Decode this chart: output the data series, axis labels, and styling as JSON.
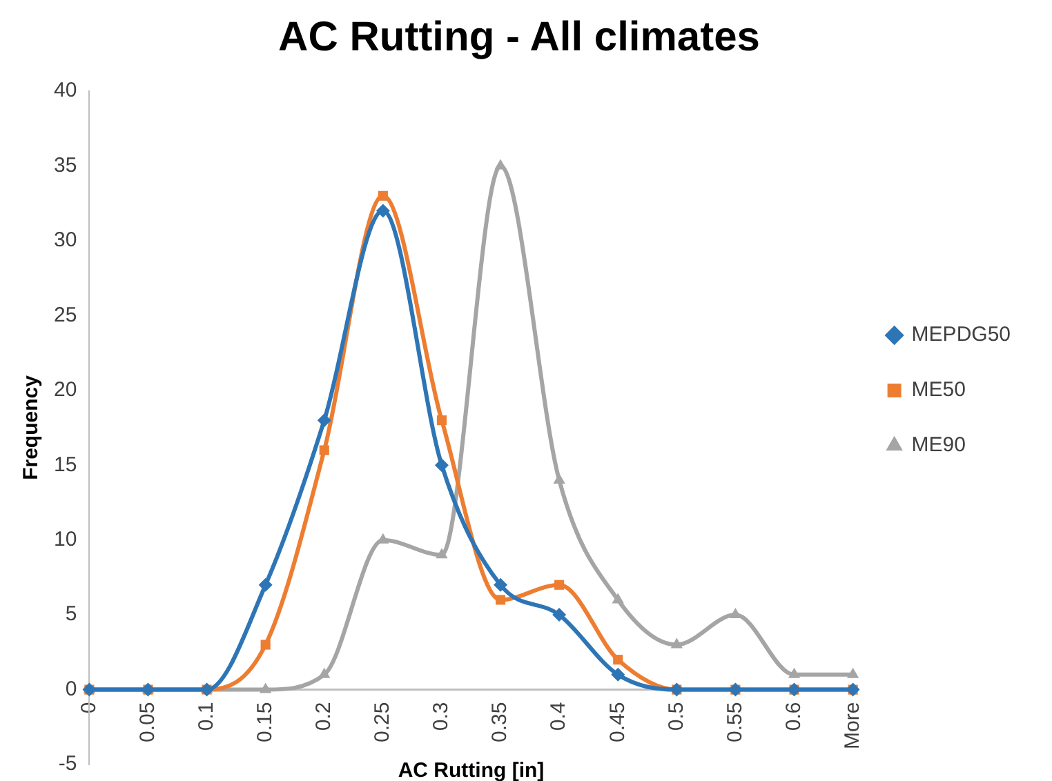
{
  "chart_data": {
    "type": "line",
    "title": "AC Rutting - All climates",
    "xlabel": "AC Rutting [in]",
    "ylabel": "Frequency",
    "categories": [
      "0",
      "0.05",
      "0.1",
      "0.15",
      "0.2",
      "0.25",
      "0.3",
      "0.35",
      "0.4",
      "0.45",
      "0.5",
      "0.55",
      "0.6",
      "More"
    ],
    "series": [
      {
        "name": "MEPDG50",
        "color": "#2e75b6",
        "marker": "diamond",
        "values": [
          0,
          0,
          0,
          7,
          18,
          32,
          15,
          7,
          5,
          1,
          0,
          0,
          0,
          0
        ]
      },
      {
        "name": "ME50",
        "color": "#ed7d31",
        "marker": "square",
        "values": [
          0,
          0,
          0,
          3,
          16,
          33,
          18,
          6,
          7,
          2,
          0,
          0,
          0,
          0
        ]
      },
      {
        "name": "ME90",
        "color": "#a5a5a5",
        "marker": "triangle",
        "values": [
          0,
          0,
          0,
          0,
          1,
          10,
          9,
          35,
          14,
          6,
          3,
          5,
          1,
          1
        ]
      }
    ],
    "ylim": [
      -5,
      40
    ],
    "yticks": [
      -5,
      0,
      5,
      10,
      15,
      20,
      25,
      30,
      35,
      40
    ],
    "grid": false,
    "legend": "right",
    "line_style": "solid"
  }
}
